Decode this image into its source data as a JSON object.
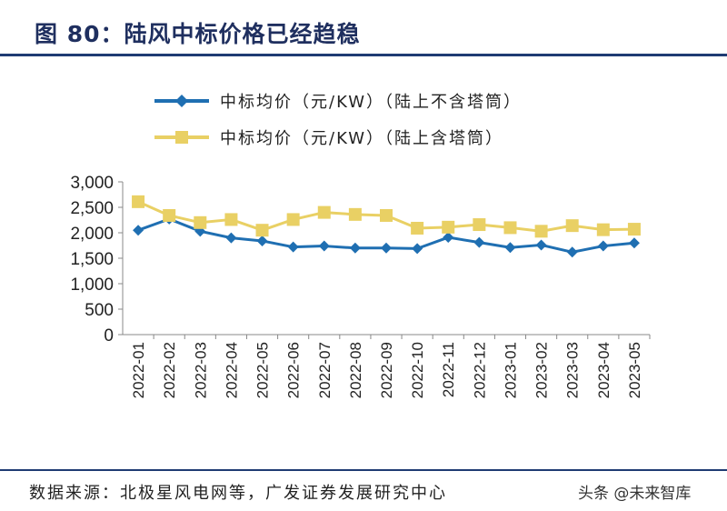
{
  "page": {
    "title": "图 80：陆风中标价格已经趋稳",
    "source": "数据来源：北极星风电网等，广发证券发展研究中心",
    "watermark": "头条 @未来智库"
  },
  "chart_data": {
    "type": "line",
    "categories": [
      "2022-01",
      "2022-02",
      "2022-03",
      "2022-04",
      "2022-05",
      "2022-06",
      "2022-07",
      "2022-08",
      "2022-09",
      "2022-10",
      "2022-11",
      "2022-12",
      "2023-01",
      "2023-02",
      "2023-03",
      "2023-04",
      "2023-05"
    ],
    "series": [
      {
        "name": "中标均价（元/KW）（陆上不含塔筒）",
        "color": "#1f6fb2",
        "marker": "diamond",
        "values": [
          2050,
          2270,
          2030,
          1900,
          1840,
          1720,
          1740,
          1700,
          1700,
          1690,
          1910,
          1810,
          1710,
          1760,
          1620,
          1740,
          1800
        ]
      },
      {
        "name": "中标均价（元/KW）（陆上含塔筒）",
        "color": "#e9d064",
        "marker": "square",
        "values": [
          2610,
          2340,
          2200,
          2260,
          2050,
          2260,
          2400,
          2360,
          2340,
          2090,
          2110,
          2160,
          2100,
          2030,
          2140,
          2060,
          2070
        ]
      }
    ],
    "yticks": [
      "3,000",
      "2,500",
      "2,000",
      "1,500",
      "1,000",
      "500",
      "0"
    ],
    "ylim": [
      0,
      3000
    ],
    "grid": false,
    "legend_position": "top-left"
  }
}
